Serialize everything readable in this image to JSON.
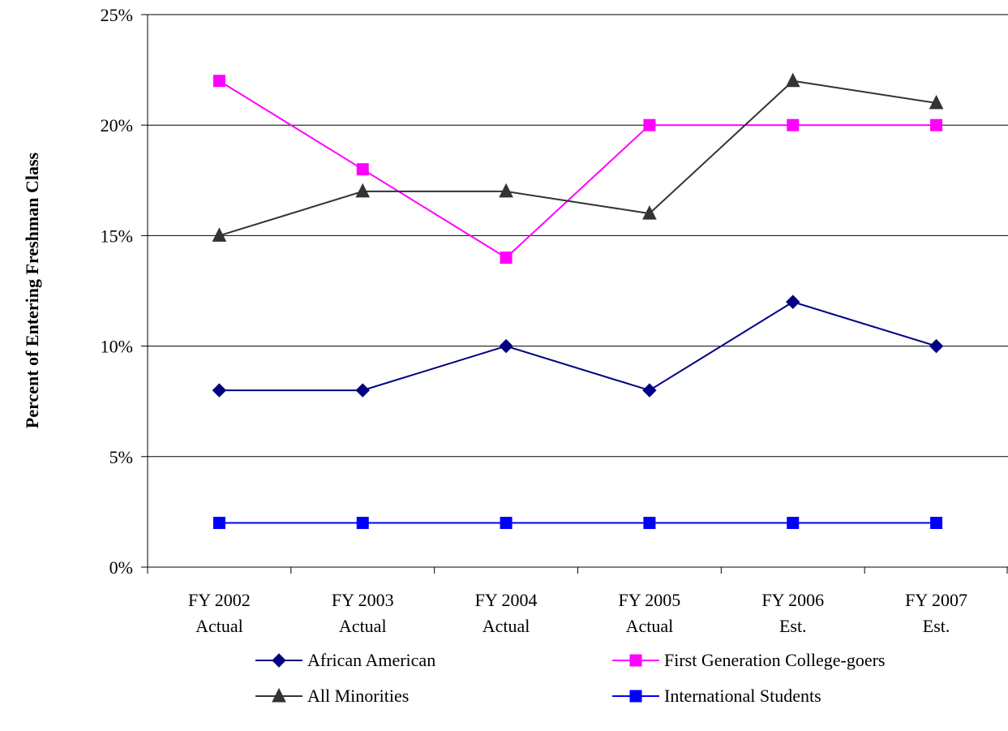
{
  "chart_data": {
    "type": "line",
    "title": "",
    "xlabel": "",
    "ylabel": "Percent of Entering Freshman Class",
    "categories": [
      [
        "FY 2002",
        "Actual"
      ],
      [
        "FY 2003",
        "Actual"
      ],
      [
        "FY 2004",
        "Actual"
      ],
      [
        "FY 2005",
        "Actual"
      ],
      [
        "FY 2006",
        "Est."
      ],
      [
        "FY 2007",
        "Est."
      ]
    ],
    "yticks": [
      "0%",
      "5%",
      "10%",
      "15%",
      "20%",
      "25%"
    ],
    "ylim": [
      0,
      25
    ],
    "grid": true,
    "legend_position": "bottom",
    "series": [
      {
        "name": "African American",
        "values": [
          8,
          8,
          10,
          8,
          12,
          10
        ],
        "color": "#000080",
        "marker": "diamond"
      },
      {
        "name": "First Generation College-goers",
        "values": [
          22,
          18,
          14,
          20,
          20,
          20
        ],
        "color": "#ff00ff",
        "marker": "square"
      },
      {
        "name": "All Minorities",
        "values": [
          15,
          17,
          17,
          16,
          22,
          21
        ],
        "color": "#333333",
        "marker": "triangle"
      },
      {
        "name": "International Students",
        "values": [
          2,
          2,
          2,
          2,
          2,
          2
        ],
        "color": "#0000ff",
        "marker": "square"
      }
    ]
  }
}
